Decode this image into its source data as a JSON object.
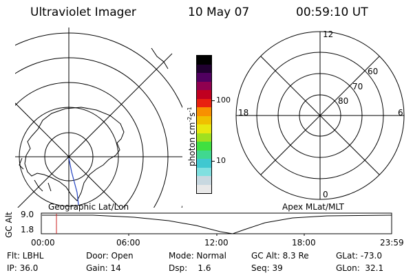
{
  "header": {
    "title": "Ultraviolet Imager",
    "date": "10 May 07",
    "time": "00:59:10 UT"
  },
  "geo_panel": {
    "label": "Geographic Lat/Lon"
  },
  "apex_panel": {
    "label": "Apex MLat/MLT",
    "mlt_labels": [
      "12",
      "18",
      "6",
      "0"
    ],
    "mlat_labels": [
      "60",
      "70",
      "80"
    ]
  },
  "colorbar": {
    "unit_label": "photon cm",
    "unit_sup1": "-2",
    "unit_mid": "s",
    "unit_sup2": "-1",
    "tick_labels": [
      "100",
      "10"
    ],
    "colors": [
      "#e8e8e8",
      "#c8d8e0",
      "#80e0e0",
      "#40c8d0",
      "#40d890",
      "#40e040",
      "#a0e020",
      "#e8e810",
      "#f0c000",
      "#f89000",
      "#e82010",
      "#c00020",
      "#900050",
      "#500060",
      "#200030",
      "#000000"
    ]
  },
  "alt_plot": {
    "ylabel": "GC Alt",
    "y_ticks": [
      "9.0",
      "1.8"
    ],
    "x_ticks": [
      "00:00",
      "06:00",
      "12:00",
      "18:00",
      "23:59"
    ]
  },
  "info": {
    "filter": "Flt: LBHL",
    "door": "Door: Open",
    "mode": "Mode: Normal",
    "gc_alt": "GC Alt: 8.3 Re",
    "glat": "GLat: -73.0",
    "ip": "IP: 36.0",
    "gain": "Gain: 14",
    "dsp": "Dsp:    1.6",
    "seq": "Seq: 39",
    "glon": "GLon:  32.1"
  },
  "colors": {
    "marker": "#cc2020",
    "ink": "#000000",
    "river": "#2040c0"
  }
}
